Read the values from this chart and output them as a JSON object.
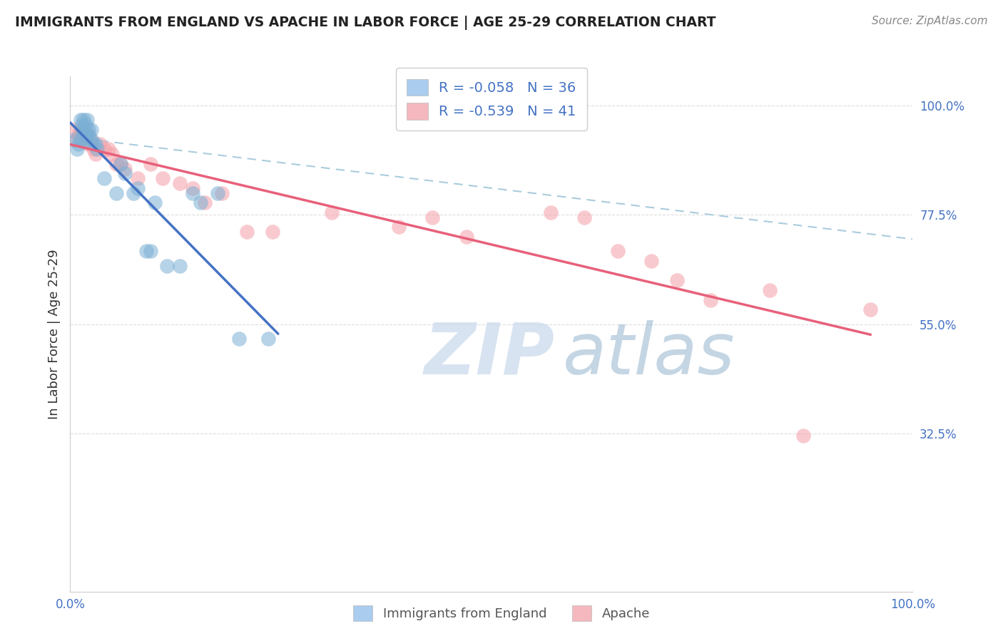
{
  "title": "IMMIGRANTS FROM ENGLAND VS APACHE IN LABOR FORCE | AGE 25-29 CORRELATION CHART",
  "source": "Source: ZipAtlas.com",
  "ylabel": "In Labor Force | Age 25-29",
  "xlim": [
    0.0,
    1.0
  ],
  "ylim": [
    0.0,
    1.06
  ],
  "ytick_positions": [
    0.325,
    0.55,
    0.775,
    1.0
  ],
  "ytick_labels": [
    "32.5%",
    "55.0%",
    "77.5%",
    "100.0%"
  ],
  "blue_color": "#7BAFD4",
  "pink_color": "#F4A0A8",
  "blue_line_color": "#4472C4",
  "pink_line_color": "#E8607A",
  "dashed_line_color": "#AACCDD",
  "england_x": [
    0.005,
    0.008,
    0.01,
    0.012,
    0.012,
    0.014,
    0.014,
    0.016,
    0.016,
    0.018,
    0.018,
    0.02,
    0.02,
    0.022,
    0.022,
    0.025,
    0.025,
    0.028,
    0.03,
    0.032,
    0.04,
    0.055,
    0.06,
    0.065,
    0.075,
    0.08,
    0.09,
    0.095,
    0.1,
    0.115,
    0.13,
    0.145,
    0.155,
    0.175,
    0.2,
    0.235
  ],
  "england_y": [
    0.93,
    0.91,
    0.92,
    0.93,
    0.97,
    0.95,
    0.96,
    0.95,
    0.97,
    0.93,
    0.96,
    0.94,
    0.97,
    0.94,
    0.95,
    0.93,
    0.95,
    0.92,
    0.92,
    0.91,
    0.85,
    0.82,
    0.88,
    0.86,
    0.82,
    0.83,
    0.7,
    0.7,
    0.8,
    0.67,
    0.67,
    0.82,
    0.8,
    0.82,
    0.52,
    0.52
  ],
  "apache_x": [
    0.005,
    0.008,
    0.01,
    0.012,
    0.014,
    0.016,
    0.018,
    0.02,
    0.022,
    0.025,
    0.028,
    0.03,
    0.035,
    0.04,
    0.045,
    0.05,
    0.055,
    0.06,
    0.065,
    0.08,
    0.095,
    0.11,
    0.13,
    0.145,
    0.16,
    0.18,
    0.21,
    0.24,
    0.31,
    0.39,
    0.43,
    0.47,
    0.57,
    0.61,
    0.65,
    0.69,
    0.72,
    0.76,
    0.83,
    0.87,
    0.95
  ],
  "apache_y": [
    0.95,
    0.93,
    0.94,
    0.95,
    0.94,
    0.95,
    0.94,
    0.93,
    0.92,
    0.93,
    0.91,
    0.9,
    0.92,
    0.91,
    0.91,
    0.9,
    0.88,
    0.88,
    0.87,
    0.85,
    0.88,
    0.85,
    0.84,
    0.83,
    0.8,
    0.82,
    0.74,
    0.74,
    0.78,
    0.75,
    0.77,
    0.73,
    0.78,
    0.77,
    0.7,
    0.68,
    0.64,
    0.6,
    0.62,
    0.32,
    0.58
  ],
  "background_color": "#FFFFFF",
  "grid_color": "#DDDDDD",
  "watermark_zip": "ZIP",
  "watermark_atlas": "atlas"
}
